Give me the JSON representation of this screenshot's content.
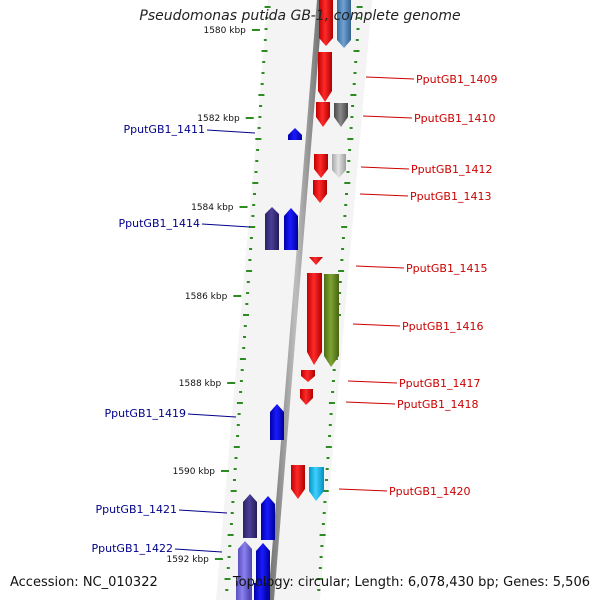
{
  "title": "Pseudomonas putida GB-1, complete genome",
  "footer": {
    "accession": "Accession: NC_010322",
    "topology": "Topology: circular; Length: 6,078,430 bp; Genes: 5,506"
  },
  "colors": {
    "backbone": "#9a9a9a",
    "tick": "#2e8b22",
    "plus_strand_label": "#cc0000",
    "minus_strand_label": "#00008b",
    "gene_red": "#ff0000",
    "gene_blue": "#0000ff"
  },
  "scale_labels": [
    "1580 kbp",
    "1582 kbp",
    "1584 kbp",
    "1586 kbp",
    "1588 kbp",
    "1590 kbp",
    "1592 kbp"
  ],
  "genes_right": [
    "PputGB1_1409",
    "PputGB1_1410",
    "PputGB1_1412",
    "PputGB1_1413",
    "PputGB1_1415",
    "PputGB1_1416",
    "PputGB1_1417",
    "PputGB1_1418",
    "PputGB1_1420"
  ],
  "genes_left": [
    "PputGB1_1411",
    "PputGB1_1414",
    "PputGB1_1419",
    "PputGB1_1421",
    "PputGB1_1422"
  ]
}
